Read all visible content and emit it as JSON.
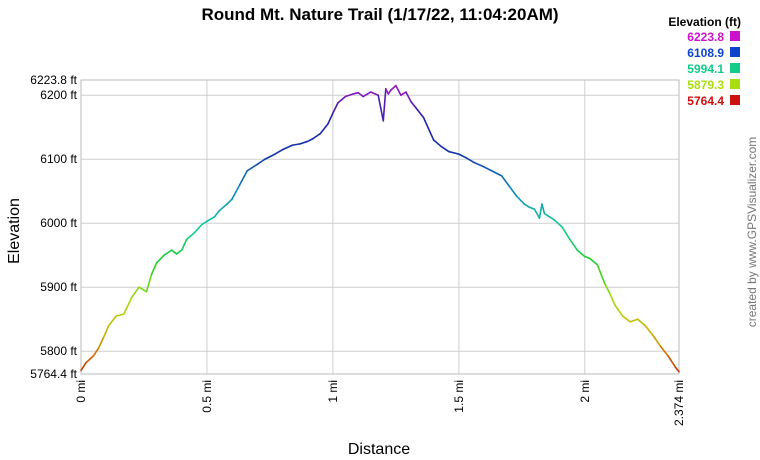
{
  "chart_data": {
    "type": "line",
    "title": "Round Mt. Nature Trail (1/17/22, 11:04:20AM)",
    "xlabel": "Distance",
    "ylabel": "Elevation",
    "xlim": [
      0,
      2.374
    ],
    "ylim": [
      5764.4,
      6223.8
    ],
    "grid": true,
    "legend_position": "top-right",
    "x_ticks": [
      {
        "value": 0,
        "label": "0 mi"
      },
      {
        "value": 0.5,
        "label": "0.5 mi"
      },
      {
        "value": 1,
        "label": "1 mi"
      },
      {
        "value": 1.5,
        "label": "1.5 mi"
      },
      {
        "value": 2,
        "label": "2 mi"
      },
      {
        "value": 2.374,
        "label": "2.374 mi"
      }
    ],
    "y_ticks": [
      {
        "value": 6223.8,
        "label": "6223.8 ft"
      },
      {
        "value": 6200,
        "label": "6200 ft"
      },
      {
        "value": 6100,
        "label": "6100 ft"
      },
      {
        "value": 6000,
        "label": "6000 ft"
      },
      {
        "value": 5900,
        "label": "5900 ft"
      },
      {
        "value": 5800,
        "label": "5800 ft"
      },
      {
        "value": 5764.4,
        "label": "5764.4 ft"
      }
    ],
    "legend": {
      "title": "Elevation (ft)",
      "entries": [
        {
          "label": "6223.8",
          "color": "#cc11cc"
        },
        {
          "label": "6108.9",
          "color": "#1144cc"
        },
        {
          "label": "5994.1",
          "color": "#11cc88"
        },
        {
          "label": "5879.3",
          "color": "#aadd11"
        },
        {
          "label": "5764.4",
          "color": "#cc1111"
        }
      ]
    },
    "color_stops": [
      {
        "value": 5764.4,
        "color": "#cc2200"
      },
      {
        "value": 5822,
        "color": "#ccaa00"
      },
      {
        "value": 5879.3,
        "color": "#aadd11"
      },
      {
        "value": 5936,
        "color": "#22cc22"
      },
      {
        "value": 5994.1,
        "color": "#11cc99"
      },
      {
        "value": 6051,
        "color": "#1188bb"
      },
      {
        "value": 6108.9,
        "color": "#1133aa"
      },
      {
        "value": 6166,
        "color": "#2222aa"
      },
      {
        "value": 6223.8,
        "color": "#bb11cc"
      }
    ],
    "series": [
      {
        "x": [
          0,
          0.02,
          0.05,
          0.07,
          0.09,
          0.11,
          0.14,
          0.17,
          0.2,
          0.23,
          0.26,
          0.28,
          0.3,
          0.33,
          0.36,
          0.38,
          0.4,
          0.42,
          0.45,
          0.48,
          0.5,
          0.53,
          0.55,
          0.58,
          0.6,
          0.63,
          0.66,
          0.7,
          0.73,
          0.77,
          0.8,
          0.84,
          0.87,
          0.9,
          0.92,
          0.95,
          0.98,
          1.0,
          1.02,
          1.05,
          1.08,
          1.1,
          1.12,
          1.15,
          1.18,
          1.2,
          1.21,
          1.22,
          1.23,
          1.25,
          1.27,
          1.29,
          1.31,
          1.33,
          1.36,
          1.4,
          1.43,
          1.46,
          1.5,
          1.53,
          1.56,
          1.6,
          1.63,
          1.67,
          1.7,
          1.73,
          1.76,
          1.78,
          1.8,
          1.82,
          1.83,
          1.84,
          1.86,
          1.88,
          1.91,
          1.94,
          1.97,
          2.0,
          2.02,
          2.05,
          2.08,
          2.1,
          2.12,
          2.15,
          2.18,
          2.21,
          2.24,
          2.27,
          2.3,
          2.33,
          2.36,
          2.374
        ],
        "y": [
          5770,
          5782,
          5793,
          5805,
          5822,
          5840,
          5855,
          5858,
          5883,
          5900,
          5893,
          5920,
          5938,
          5950,
          5958,
          5952,
          5958,
          5975,
          5985,
          5998,
          6003,
          6010,
          6020,
          6030,
          6038,
          6060,
          6082,
          6092,
          6100,
          6108,
          6115,
          6122,
          6124,
          6128,
          6132,
          6140,
          6155,
          6172,
          6188,
          6198,
          6202,
          6204,
          6198,
          6205,
          6200,
          6160,
          6210,
          6202,
          6208,
          6215,
          6200,
          6205,
          6190,
          6180,
          6165,
          6130,
          6120,
          6112,
          6108,
          6102,
          6095,
          6088,
          6082,
          6074,
          6058,
          6042,
          6030,
          6025,
          6022,
          6008,
          6030,
          6015,
          6010,
          6005,
          5994,
          5975,
          5958,
          5948,
          5945,
          5935,
          5905,
          5890,
          5872,
          5855,
          5846,
          5850,
          5840,
          5825,
          5808,
          5793,
          5775,
          5768
        ]
      }
    ]
  },
  "credit": "created by www.GPSVisualizer.com"
}
